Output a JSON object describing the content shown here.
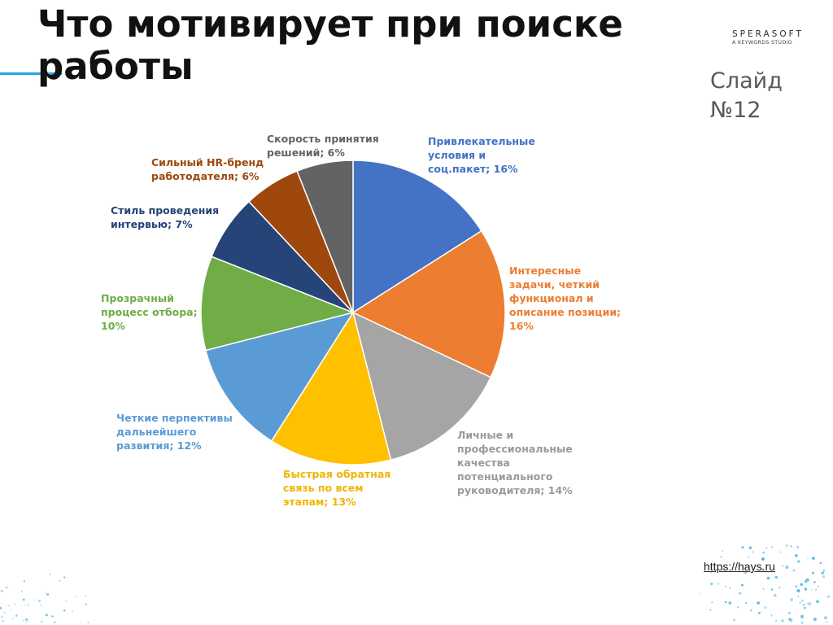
{
  "slide": {
    "title": "Что мотивирует при поиске работы",
    "slide_number": "Слайд №12",
    "source_link": "https://hays.ru",
    "logo": {
      "main": "SPERASOFT",
      "sub": "A KEYWORDS STUDIO"
    },
    "accent_color": "#1ea7e1"
  },
  "chart_data": {
    "type": "pie",
    "title": "",
    "start_angle_deg": 0,
    "direction": "clockwise",
    "unit": "%",
    "slices": [
      {
        "label": "Привлекательные условия и соц.пакет",
        "value": 16,
        "color": "#4472c4",
        "label_lines": [
          "Привлекательные",
          "условия и",
          "соц.пакет; 16%"
        ]
      },
      {
        "label": "Интересные задачи, четкий функционал и описание позиции",
        "value": 16,
        "color": "#ed7d31",
        "label_lines": [
          "Интересные",
          "задачи, четкий",
          "функционал и",
          "описание позиции;",
          "16%"
        ]
      },
      {
        "label": "Личные и профессиональные качества потенциального руководителя",
        "value": 14,
        "color": "#a5a5a5",
        "label_lines": [
          "Личные и",
          "профессиональные",
          "качества",
          "потенциального",
          "руководителя; 14%"
        ]
      },
      {
        "label": "Быстрая обратная связь по всем этапам",
        "value": 13,
        "color": "#ffc000",
        "label_lines": [
          "Быстрая обратная",
          "связь по всем",
          "этапам; 13%"
        ]
      },
      {
        "label": "Четкие перпективы дальнейшего развития",
        "value": 12,
        "color": "#5b9bd5",
        "label_lines": [
          "Четкие перпективы",
          "дальнейшего",
          "развития; 12%"
        ]
      },
      {
        "label": "Прозрачный процесс отбора",
        "value": 10,
        "color": "#70ad47",
        "label_lines": [
          "Прозрачный",
          "процесс отбора;",
          "10%"
        ]
      },
      {
        "label": "Стиль проведения интервью",
        "value": 7,
        "color": "#264478",
        "label_lines": [
          "Стиль проведения",
          "интервью; 7%"
        ]
      },
      {
        "label": "Сильный HR-бренд работодателя",
        "value": 6,
        "color": "#9e480e",
        "label_lines": [
          "Сильный HR-бренд",
          "работодателя; 6%"
        ]
      },
      {
        "label": "Скорость принятия решений",
        "value": 6,
        "color": "#636363",
        "label_lines": [
          "Скорость принятия",
          "решений; 6%"
        ]
      }
    ]
  }
}
